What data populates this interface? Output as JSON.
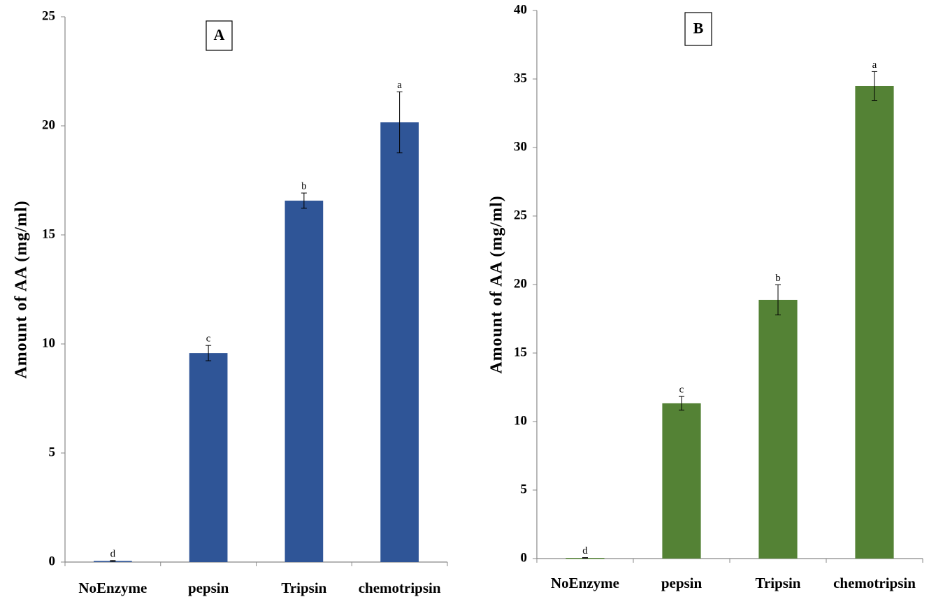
{
  "chart_data": [
    {
      "type": "bar",
      "title": "A",
      "ylabel": "Amount of AA (mg/ml)",
      "categories": [
        "NoEnzyme",
        "pepsin",
        "Tripsin",
        "chemotripsin"
      ],
      "values": [
        0.05,
        9.58,
        16.57,
        20.16
      ],
      "errors": [
        0.02,
        0.35,
        0.35,
        1.4
      ],
      "labels": [
        "d",
        "c",
        "b",
        "a"
      ],
      "color": "#2f5597",
      "ylim": [
        0,
        25
      ],
      "yticks": [
        0,
        5,
        10,
        15,
        20,
        25
      ],
      "grid": false
    },
    {
      "type": "bar",
      "title": "B",
      "ylabel": "Amount of AA (mg/ml)",
      "categories": [
        "NoEnzyme",
        "pepsin",
        "Tripsin",
        "chemotripsin"
      ],
      "values": [
        0.05,
        11.33,
        18.88,
        34.49
      ],
      "errors": [
        0.02,
        0.5,
        1.1,
        1.05
      ],
      "labels": [
        "d",
        "c",
        "b",
        "a"
      ],
      "color": "#548235",
      "ylim": [
        0,
        40
      ],
      "yticks": [
        0,
        5,
        10,
        15,
        20,
        25,
        30,
        35,
        40
      ],
      "grid": false
    }
  ]
}
